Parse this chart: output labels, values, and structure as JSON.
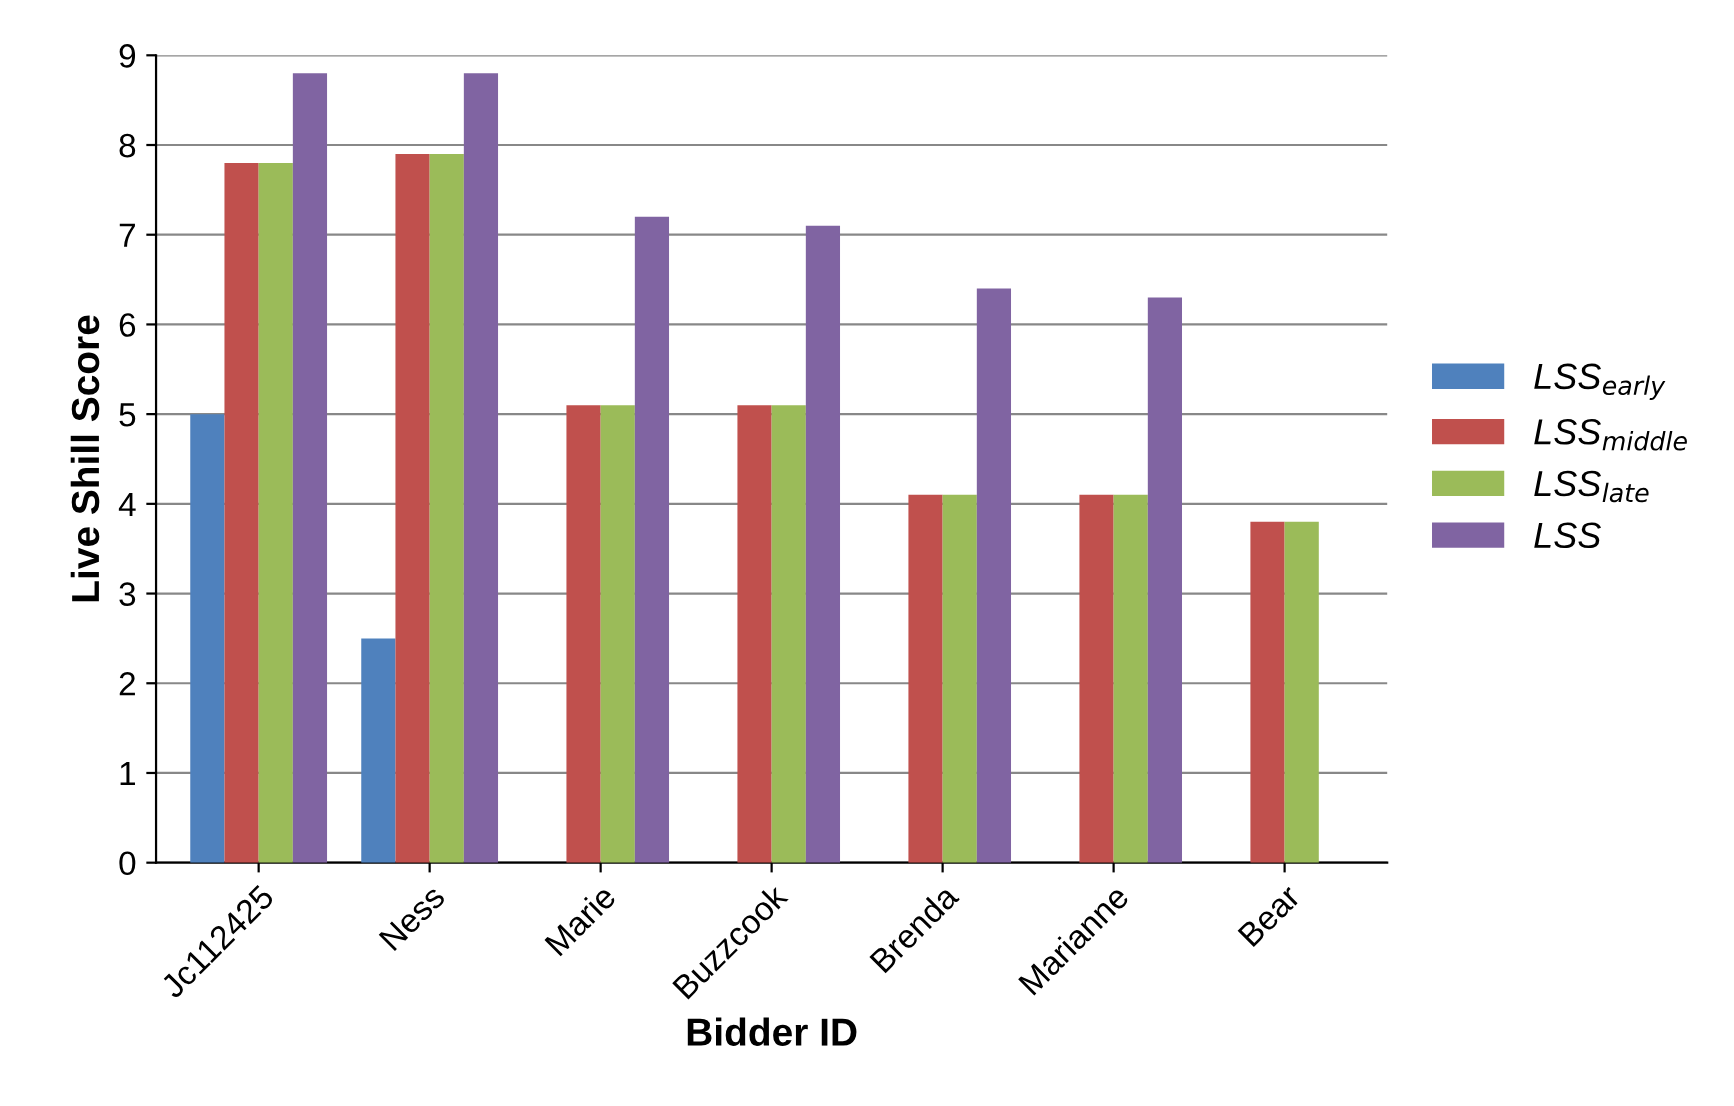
{
  "chart_data": {
    "type": "bar",
    "xlabel": "Bidder ID",
    "ylabel": "Live Shill Score",
    "categories": [
      "Jc112425",
      "Ness",
      "Marie",
      "Buzzcook",
      "Brenda",
      "Marianne",
      "Bear"
    ],
    "series": [
      {
        "name": "LSS$_{early}$",
        "color": "#4f81bd",
        "values": [
          5.0,
          2.5,
          0,
          0,
          0,
          0,
          0
        ]
      },
      {
        "name": "LSS$_{middle}$",
        "color": "#c0504d",
        "values": [
          7.8,
          7.9,
          5.1,
          5.1,
          4.1,
          4.1,
          3.8
        ]
      },
      {
        "name": "LSS$_{late}$",
        "color": "#9bbb59",
        "values": [
          7.8,
          7.9,
          5.1,
          5.1,
          4.1,
          4.1,
          3.8
        ]
      },
      {
        "name": "LSS",
        "color": "#8064a2",
        "values": [
          8.8,
          8.8,
          7.2,
          7.1,
          6.4,
          6.3,
          0
        ]
      }
    ],
    "ylim": [
      0,
      9
    ],
    "yticks": [
      0,
      1,
      2,
      3,
      4,
      5,
      6,
      7,
      8,
      9
    ],
    "grid": "y",
    "legend": "right"
  }
}
